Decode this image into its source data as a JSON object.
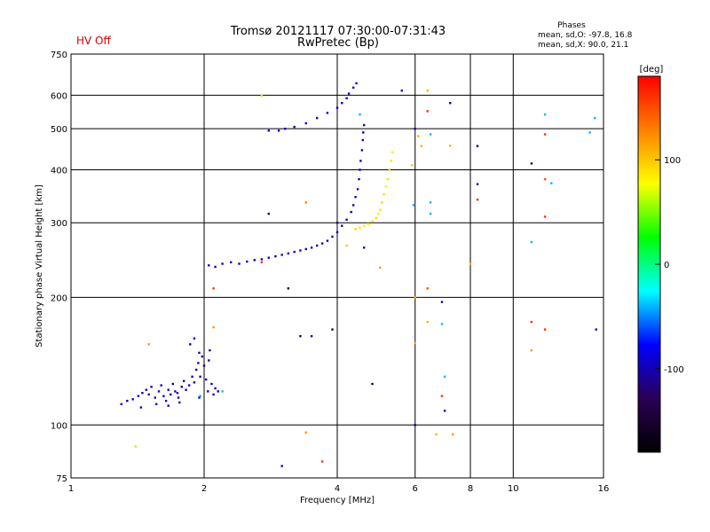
{
  "header": {
    "status": "HV Off",
    "title_line1": "Tromsø 20121117 07:30:00-07:31:43",
    "title_line2": "RwPretec (Bp)",
    "phases_title": "Phases",
    "phases_line1": "mean, sd,O: -97.8, 16.8",
    "phases_line2": "mean, sd,X:  90.0, 21.1"
  },
  "chart_data": {
    "type": "scatter",
    "title": "Tromsø 20121117 07:30:00-07:31:43",
    "subtitle": "RwPretec (Bp)",
    "xlabel": "Frequency [MHz]",
    "ylabel": "Stationary phase Virtual Height [km]",
    "x_scale": "log",
    "y_scale": "log",
    "xlim": [
      1,
      16
    ],
    "ylim": [
      75,
      750
    ],
    "x_ticks": [
      1,
      2,
      4,
      6,
      8,
      10,
      16
    ],
    "x_tick_labels": [
      "1",
      "2",
      "4",
      "6",
      "8",
      "10",
      "16"
    ],
    "y_ticks": [
      75,
      100,
      200,
      300,
      400,
      500,
      600,
      750
    ],
    "y_tick_labels": [
      "75",
      "100",
      "200",
      "300",
      "400",
      "500",
      "600",
      "750"
    ],
    "grid": true,
    "colorbar": {
      "label": "[deg]",
      "range": [
        -180,
        180
      ],
      "ticks": [
        100,
        0,
        -100
      ],
      "tick_labels": [
        "100",
        "0",
        "-100"
      ],
      "colors": [
        "#000000",
        "#2a0055",
        "#0000ff",
        "#00ffff",
        "#00ff00",
        "#ffff00",
        "#ff8000",
        "#ff0000"
      ]
    },
    "series": [
      {
        "description": "E-region echoes",
        "points": [
          [
            1.3,
            112,
            -100
          ],
          [
            1.34,
            114,
            -105
          ],
          [
            1.38,
            115,
            -95
          ],
          [
            1.42,
            117,
            -100
          ],
          [
            1.45,
            119,
            -110
          ],
          [
            1.48,
            121,
            -100
          ],
          [
            1.5,
            118,
            -90
          ],
          [
            1.52,
            123,
            -105
          ],
          [
            1.55,
            116,
            -100
          ],
          [
            1.58,
            120,
            -95
          ],
          [
            1.6,
            124,
            -100
          ],
          [
            1.62,
            117,
            -110
          ],
          [
            1.64,
            114,
            -100
          ],
          [
            1.66,
            121,
            -95
          ],
          [
            1.68,
            118,
            -100
          ],
          [
            1.7,
            125,
            -105
          ],
          [
            1.72,
            120,
            -100
          ],
          [
            1.75,
            116,
            -95
          ],
          [
            1.78,
            123,
            -100
          ],
          [
            1.8,
            127,
            -110
          ],
          [
            1.82,
            121,
            -100
          ],
          [
            1.85,
            124,
            -95
          ],
          [
            1.88,
            130,
            -100
          ],
          [
            1.9,
            126,
            -105
          ],
          [
            1.92,
            135,
            -100
          ],
          [
            1.94,
            140,
            -95
          ],
          [
            1.96,
            130,
            -100
          ],
          [
            1.98,
            145,
            -110
          ],
          [
            2.0,
            138,
            -100
          ],
          [
            2.02,
            128,
            -95
          ],
          [
            2.04,
            120,
            -100
          ],
          [
            2.06,
            150,
            -105
          ],
          [
            2.08,
            125,
            -100
          ],
          [
            2.1,
            118,
            -95
          ],
          [
            2.12,
            122,
            -100
          ],
          [
            1.86,
            155,
            -100
          ],
          [
            1.9,
            160,
            -95
          ],
          [
            1.95,
            148,
            -100
          ],
          [
            2.05,
            142,
            -100
          ],
          [
            2.15,
            120,
            -100
          ],
          [
            1.44,
            110,
            -100
          ],
          [
            1.56,
            112,
            -95
          ],
          [
            1.66,
            111,
            -100
          ],
          [
            1.76,
            113,
            -100
          ],
          [
            1.96,
            117,
            -40
          ],
          [
            2.2,
            120,
            -40
          ],
          [
            1.95,
            116,
            -90
          ],
          [
            1.74,
            119,
            -100
          ]
        ]
      },
      {
        "description": "F-region ordinary trace",
        "points": [
          [
            2.05,
            238,
            -100
          ],
          [
            2.12,
            236,
            -105
          ],
          [
            2.2,
            240,
            -100
          ],
          [
            2.3,
            242,
            -95
          ],
          [
            2.4,
            240,
            -100
          ],
          [
            2.5,
            243,
            -105
          ],
          [
            2.6,
            245,
            -100
          ],
          [
            2.7,
            246,
            -95
          ],
          [
            2.8,
            248,
            -100
          ],
          [
            2.9,
            250,
            -105
          ],
          [
            3.0,
            252,
            -100
          ],
          [
            3.1,
            254,
            -95
          ],
          [
            3.2,
            256,
            -100
          ],
          [
            3.3,
            258,
            -105
          ],
          [
            3.4,
            260,
            -100
          ],
          [
            3.5,
            262,
            -95
          ],
          [
            3.6,
            265,
            -100
          ],
          [
            3.7,
            268,
            -105
          ],
          [
            3.8,
            272,
            -100
          ],
          [
            3.9,
            278,
            -95
          ],
          [
            4.0,
            285,
            -100
          ],
          [
            4.1,
            295,
            -105
          ],
          [
            4.2,
            305,
            -100
          ],
          [
            4.3,
            318,
            -95
          ],
          [
            4.35,
            330,
            -100
          ],
          [
            4.4,
            345,
            -105
          ],
          [
            4.45,
            360,
            -100
          ],
          [
            4.48,
            380,
            -95
          ],
          [
            4.5,
            400,
            -100
          ],
          [
            4.52,
            420,
            -105
          ],
          [
            4.55,
            445,
            -100
          ],
          [
            4.57,
            470,
            -95
          ],
          [
            4.58,
            490,
            -100
          ],
          [
            4.6,
            510,
            -105
          ]
        ]
      },
      {
        "description": "F-region upper trace",
        "points": [
          [
            2.95,
            495,
            -100
          ],
          [
            3.05,
            500,
            -95
          ],
          [
            3.2,
            505,
            -100
          ],
          [
            3.4,
            515,
            -105
          ],
          [
            3.6,
            530,
            -100
          ],
          [
            3.8,
            545,
            -95
          ],
          [
            4.0,
            560,
            -100
          ],
          [
            4.1,
            575,
            -100
          ],
          [
            4.2,
            590,
            -105
          ],
          [
            4.25,
            605,
            -100
          ],
          [
            4.35,
            625,
            -95
          ],
          [
            4.42,
            640,
            -100
          ]
        ]
      },
      {
        "description": "F-region extraordinary trace",
        "points": [
          [
            4.4,
            290,
            95
          ],
          [
            4.5,
            292,
            90
          ],
          [
            4.6,
            295,
            85
          ],
          [
            4.7,
            298,
            90
          ],
          [
            4.8,
            302,
            95
          ],
          [
            4.9,
            308,
            90
          ],
          [
            4.95,
            315,
            85
          ],
          [
            5.0,
            322,
            90
          ],
          [
            5.05,
            335,
            95
          ],
          [
            5.1,
            350,
            90
          ],
          [
            5.15,
            365,
            85
          ],
          [
            5.2,
            380,
            90
          ],
          [
            5.25,
            400,
            95
          ],
          [
            5.3,
            420,
            90
          ],
          [
            5.33,
            440,
            85
          ]
        ]
      },
      {
        "description": "scattered echoes",
        "points": [
          [
            1.4,
            89,
            60
          ],
          [
            1.5,
            155,
            120
          ],
          [
            2.1,
            210,
            160
          ],
          [
            2.1,
            170,
            120
          ],
          [
            2.7,
            598,
            60
          ],
          [
            2.7,
            242,
            160
          ],
          [
            2.8,
            315,
            -140
          ],
          [
            2.8,
            495,
            -90
          ],
          [
            3.0,
            80,
            -100
          ],
          [
            3.1,
            210,
            -140
          ],
          [
            3.3,
            162,
            -140
          ],
          [
            3.4,
            335,
            130
          ],
          [
            3.4,
            96,
            120
          ],
          [
            3.5,
            162,
            -100
          ],
          [
            3.7,
            82,
            160
          ],
          [
            3.9,
            168,
            -140
          ],
          [
            4.0,
            300,
            -100
          ],
          [
            4.2,
            265,
            100
          ],
          [
            4.5,
            540,
            -40
          ],
          [
            4.6,
            262,
            -100
          ],
          [
            4.8,
            125,
            -140
          ],
          [
            5.0,
            235,
            120
          ],
          [
            5.6,
            615,
            -100
          ],
          [
            5.9,
            410,
            100
          ],
          [
            5.95,
            330,
            -40
          ],
          [
            6.0,
            500,
            -100
          ],
          [
            6.0,
            200,
            110
          ],
          [
            6.0,
            156,
            110
          ],
          [
            6.0,
            100,
            -100
          ],
          [
            6.1,
            480,
            110
          ],
          [
            6.2,
            455,
            110
          ],
          [
            6.4,
            210,
            150
          ],
          [
            6.4,
            175,
            110
          ],
          [
            6.4,
            550,
            160
          ],
          [
            6.4,
            615,
            110
          ],
          [
            6.5,
            315,
            -40
          ],
          [
            6.5,
            335,
            -40
          ],
          [
            6.5,
            485,
            -40
          ],
          [
            6.7,
            95,
            110
          ],
          [
            6.9,
            195,
            -100
          ],
          [
            6.9,
            173,
            -40
          ],
          [
            6.9,
            117,
            160
          ],
          [
            7.0,
            130,
            -40
          ],
          [
            7.0,
            108,
            -100
          ],
          [
            7.2,
            575,
            -140
          ],
          [
            7.2,
            456,
            110
          ],
          [
            7.3,
            95,
            120
          ],
          [
            8.0,
            240,
            110
          ],
          [
            8.3,
            455,
            -140
          ],
          [
            8.3,
            370,
            -100
          ],
          [
            8.3,
            340,
            160
          ],
          [
            11.0,
            414,
            -140
          ],
          [
            11.0,
            270,
            -40
          ],
          [
            11.0,
            175,
            160
          ],
          [
            11.0,
            150,
            120
          ],
          [
            11.8,
            540,
            -40
          ],
          [
            11.8,
            485,
            160
          ],
          [
            11.8,
            380,
            150
          ],
          [
            11.8,
            310,
            160
          ],
          [
            11.8,
            168,
            160
          ],
          [
            12.2,
            372,
            -40
          ],
          [
            14.9,
            490,
            -40
          ],
          [
            15.3,
            530,
            -40
          ],
          [
            15.4,
            168,
            -100
          ]
        ]
      }
    ]
  }
}
